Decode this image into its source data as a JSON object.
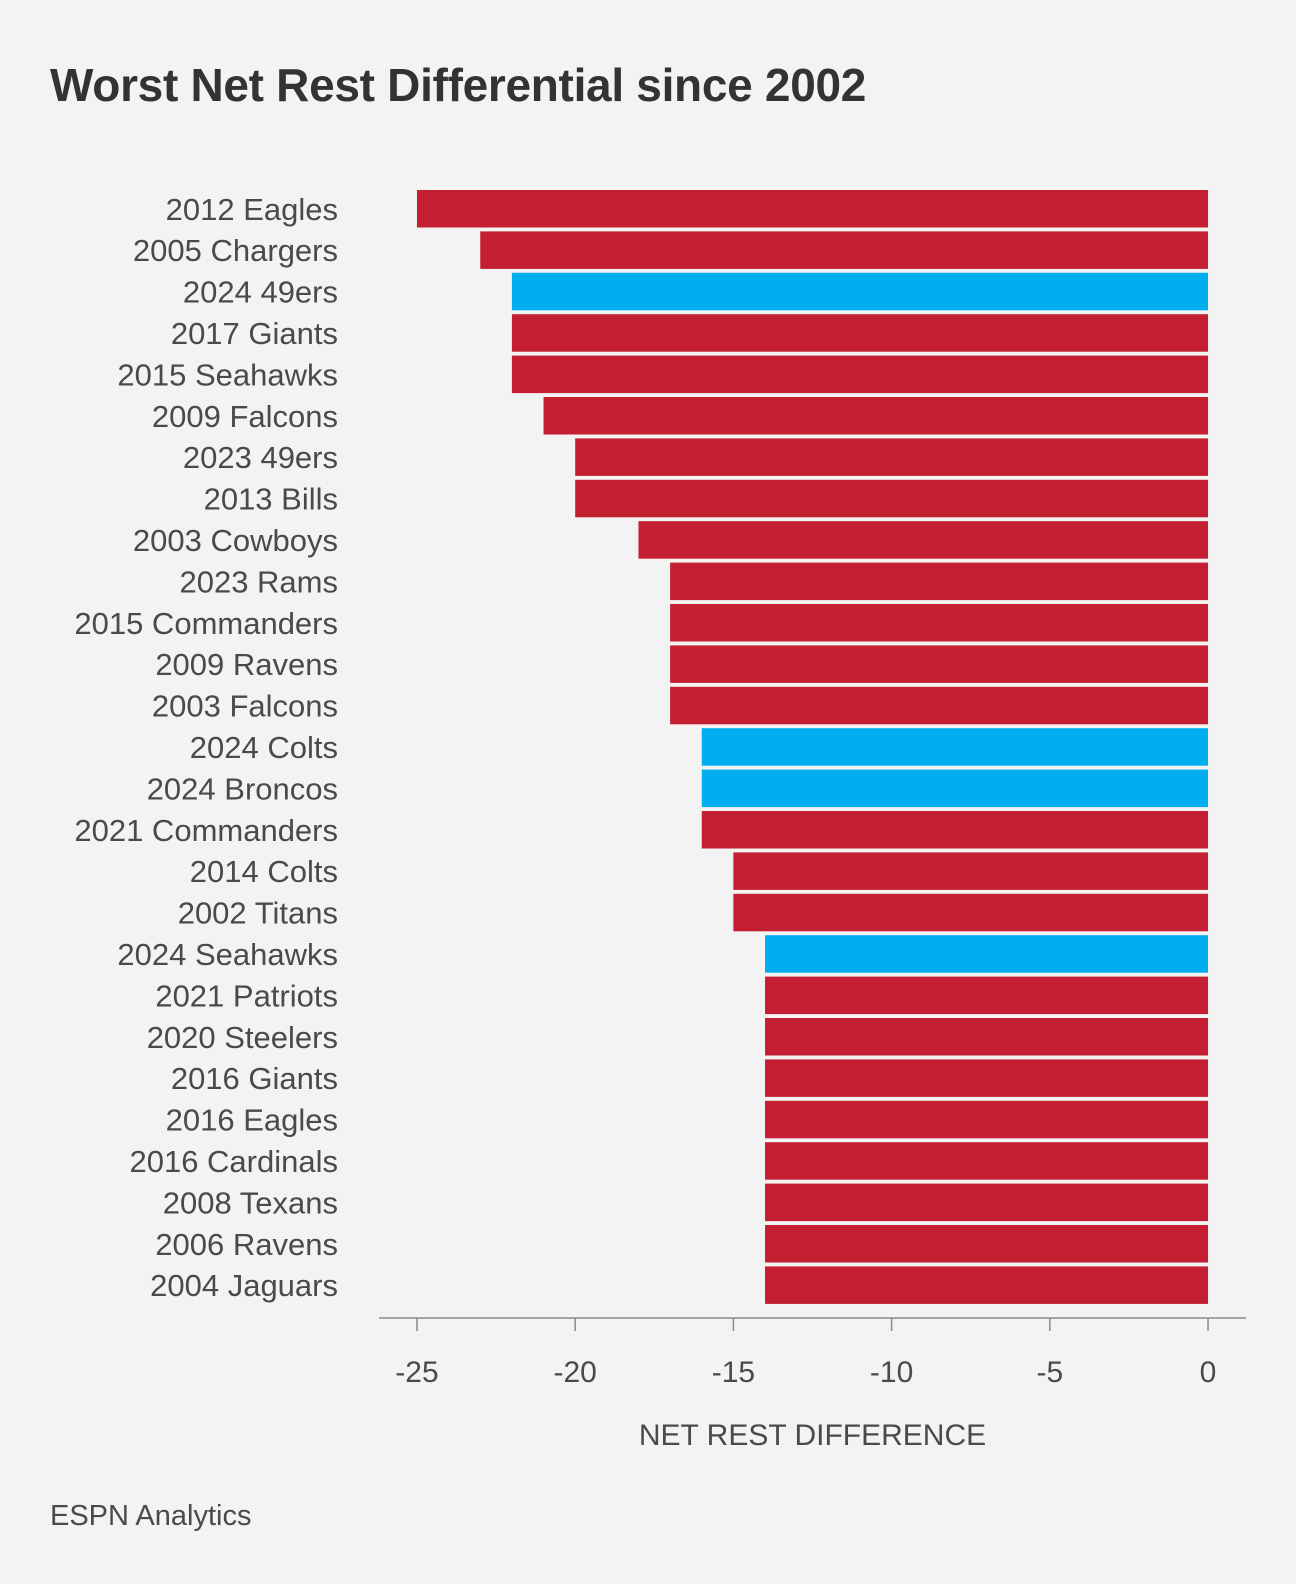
{
  "chart_data": {
    "type": "bar",
    "orientation": "horizontal",
    "title": "Worst Net Rest Differential since 2002",
    "xlabel": "NET REST DIFFERENCE",
    "ylabel": "",
    "xlim": [
      -26.2,
      1.2
    ],
    "xticks": [
      -25,
      -20,
      -15,
      -10,
      -5,
      0
    ],
    "tick_labels": [
      "-25",
      "-20",
      "-15",
      "-10",
      "-5",
      "0"
    ],
    "grid": false,
    "colors": {
      "default": "#c41e32",
      "highlight": "#00adef"
    },
    "categories": [
      "2012 Eagles",
      "2005 Chargers",
      "2024 49ers",
      "2017 Giants",
      "2015 Seahawks",
      "2009 Falcons",
      "2023 49ers",
      "2013 Bills",
      "2003 Cowboys",
      "2023 Rams",
      "2015 Commanders",
      "2009 Ravens",
      "2003 Falcons",
      "2024 Colts",
      "2024 Broncos",
      "2021 Commanders",
      "2014 Colts",
      "2002 Titans",
      "2024 Seahawks",
      "2021 Patriots",
      "2020 Steelers",
      "2016 Giants",
      "2016 Eagles",
      "2016 Cardinals",
      "2008 Texans",
      "2006 Ravens",
      "2004 Jaguars"
    ],
    "values": [
      -25,
      -23,
      -22,
      -22,
      -22,
      -21,
      -20,
      -20,
      -18,
      -17,
      -17,
      -17,
      -17,
      -16,
      -16,
      -16,
      -15,
      -15,
      -14,
      -14,
      -14,
      -14,
      -14,
      -14,
      -14,
      -14,
      -14
    ],
    "highlight": [
      false,
      false,
      true,
      false,
      false,
      false,
      false,
      false,
      false,
      false,
      false,
      false,
      false,
      true,
      true,
      false,
      false,
      false,
      true,
      false,
      false,
      false,
      false,
      false,
      false,
      false,
      false
    ]
  },
  "source": "ESPN Analytics"
}
